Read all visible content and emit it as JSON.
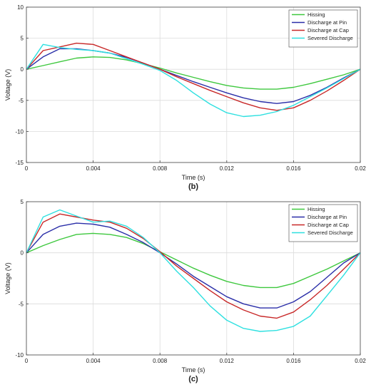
{
  "chart_data": [
    {
      "type": "line",
      "panel_label": "(b)",
      "xlabel": "Time (s)",
      "ylabel": "Voltage (V)",
      "xlim": [
        0,
        0.02
      ],
      "ylim": [
        -15,
        10
      ],
      "xticks": [
        0,
        0.004,
        0.008,
        0.012,
        0.016,
        0.02
      ],
      "xtick_labels": [
        "0",
        "0.004",
        "0.008",
        "0.012",
        "0.016",
        "0.02"
      ],
      "yticks": [
        -15,
        -10,
        -5,
        0,
        5,
        10
      ],
      "ytick_labels": [
        "-15",
        "-10",
        "-5",
        "0",
        "5",
        "10"
      ],
      "grid": true,
      "legend_position": "top-right",
      "series": [
        {
          "name": "Hissing",
          "color": "#3ec83e",
          "x": [
            0,
            0.001,
            0.002,
            0.003,
            0.004,
            0.005,
            0.006,
            0.007,
            0.008,
            0.009,
            0.01,
            0.011,
            0.012,
            0.013,
            0.014,
            0.015,
            0.016,
            0.017,
            0.018,
            0.019,
            0.02
          ],
          "y": [
            0,
            0.6,
            1.2,
            1.8,
            2.0,
            1.9,
            1.5,
            0.9,
            0.2,
            -0.6,
            -1.3,
            -2.0,
            -2.6,
            -3.0,
            -3.2,
            -3.2,
            -2.9,
            -2.3,
            -1.6,
            -0.9,
            0
          ]
        },
        {
          "name": "Discharge at Pin",
          "color": "#2a2ea8",
          "x": [
            0,
            0.001,
            0.002,
            0.003,
            0.004,
            0.005,
            0.006,
            0.007,
            0.008,
            0.009,
            0.01,
            0.011,
            0.012,
            0.013,
            0.014,
            0.015,
            0.016,
            0.017,
            0.018,
            0.019,
            0.02
          ],
          "y": [
            0,
            2.0,
            3.3,
            3.3,
            3.0,
            2.6,
            1.9,
            1.0,
            0,
            -1.0,
            -2.0,
            -2.9,
            -3.8,
            -4.6,
            -5.2,
            -5.5,
            -5.2,
            -4.2,
            -2.9,
            -1.4,
            0
          ]
        },
        {
          "name": "Discharge at Cap",
          "color": "#c82828",
          "x": [
            0,
            0.001,
            0.002,
            0.003,
            0.004,
            0.005,
            0.006,
            0.007,
            0.008,
            0.009,
            0.01,
            0.011,
            0.012,
            0.013,
            0.014,
            0.015,
            0.016,
            0.017,
            0.018,
            0.019,
            0.02
          ],
          "y": [
            0,
            3.0,
            3.6,
            4.2,
            4.0,
            3.0,
            2.0,
            1.0,
            0,
            -1.2,
            -2.3,
            -3.4,
            -4.4,
            -5.4,
            -6.2,
            -6.6,
            -6.2,
            -5.0,
            -3.5,
            -1.8,
            0
          ]
        },
        {
          "name": "Severed Discharge",
          "color": "#2ee0e0",
          "x": [
            0,
            0.001,
            0.002,
            0.003,
            0.004,
            0.005,
            0.006,
            0.007,
            0.008,
            0.009,
            0.01,
            0.011,
            0.012,
            0.013,
            0.014,
            0.015,
            0.016,
            0.017,
            0.018,
            0.019,
            0.02
          ],
          "y": [
            0,
            4.0,
            3.5,
            3.2,
            3.0,
            2.6,
            1.7,
            0.8,
            -0.2,
            -1.8,
            -3.8,
            -5.6,
            -7.0,
            -7.6,
            -7.4,
            -6.8,
            -5.8,
            -4.4,
            -3.0,
            -1.5,
            0
          ]
        }
      ]
    },
    {
      "type": "line",
      "panel_label": "(c)",
      "xlabel": "Time (s)",
      "ylabel": "Voltage (V)",
      "xlim": [
        0,
        0.02
      ],
      "ylim": [
        -10,
        5
      ],
      "xticks": [
        0,
        0.004,
        0.008,
        0.012,
        0.016,
        0.02
      ],
      "xtick_labels": [
        "0",
        "0.004",
        "0.008",
        "0.012",
        "0.016",
        "0.02"
      ],
      "yticks": [
        -10,
        -5,
        0,
        5
      ],
      "ytick_labels": [
        "-10",
        "-5",
        "0",
        "5"
      ],
      "grid": true,
      "legend_position": "top-right",
      "series": [
        {
          "name": "Hissing",
          "color": "#3ec83e",
          "x": [
            0,
            0.001,
            0.002,
            0.003,
            0.004,
            0.005,
            0.006,
            0.007,
            0.008,
            0.009,
            0.01,
            0.011,
            0.012,
            0.013,
            0.014,
            0.015,
            0.016,
            0.017,
            0.018,
            0.019,
            0.02
          ],
          "y": [
            0,
            0.7,
            1.3,
            1.8,
            1.9,
            1.8,
            1.5,
            0.9,
            0.1,
            -0.7,
            -1.5,
            -2.2,
            -2.8,
            -3.2,
            -3.4,
            -3.4,
            -3.0,
            -2.3,
            -1.6,
            -0.8,
            0
          ]
        },
        {
          "name": "Discharge at Pin",
          "color": "#2a2ea8",
          "x": [
            0,
            0.001,
            0.002,
            0.003,
            0.004,
            0.005,
            0.006,
            0.007,
            0.008,
            0.009,
            0.01,
            0.011,
            0.012,
            0.013,
            0.014,
            0.015,
            0.016,
            0.017,
            0.018,
            0.019,
            0.02
          ],
          "y": [
            0,
            1.8,
            2.6,
            2.9,
            2.8,
            2.5,
            1.8,
            1.0,
            0,
            -1.1,
            -2.3,
            -3.3,
            -4.3,
            -5.0,
            -5.4,
            -5.4,
            -4.8,
            -3.8,
            -2.4,
            -1.0,
            0
          ]
        },
        {
          "name": "Discharge at Cap",
          "color": "#c82828",
          "x": [
            0,
            0.001,
            0.002,
            0.003,
            0.004,
            0.005,
            0.006,
            0.007,
            0.008,
            0.009,
            0.01,
            0.011,
            0.012,
            0.013,
            0.014,
            0.015,
            0.016,
            0.017,
            0.018,
            0.019,
            0.02
          ],
          "y": [
            0,
            3.0,
            3.8,
            3.5,
            3.2,
            3.0,
            2.4,
            1.4,
            0.1,
            -1.3,
            -2.5,
            -3.7,
            -4.8,
            -5.6,
            -6.2,
            -6.4,
            -5.8,
            -4.6,
            -3.2,
            -1.6,
            0
          ]
        },
        {
          "name": "Severed Discharge",
          "color": "#2ee0e0",
          "x": [
            0,
            0.001,
            0.002,
            0.003,
            0.004,
            0.005,
            0.006,
            0.007,
            0.008,
            0.009,
            0.01,
            0.011,
            0.012,
            0.013,
            0.014,
            0.015,
            0.016,
            0.017,
            0.018,
            0.019,
            0.02
          ],
          "y": [
            0,
            3.5,
            4.2,
            3.6,
            3.0,
            3.1,
            2.6,
            1.5,
            0,
            -1.8,
            -3.4,
            -5.2,
            -6.6,
            -7.4,
            -7.7,
            -7.6,
            -7.2,
            -6.2,
            -4.2,
            -2.2,
            0
          ]
        }
      ]
    }
  ]
}
